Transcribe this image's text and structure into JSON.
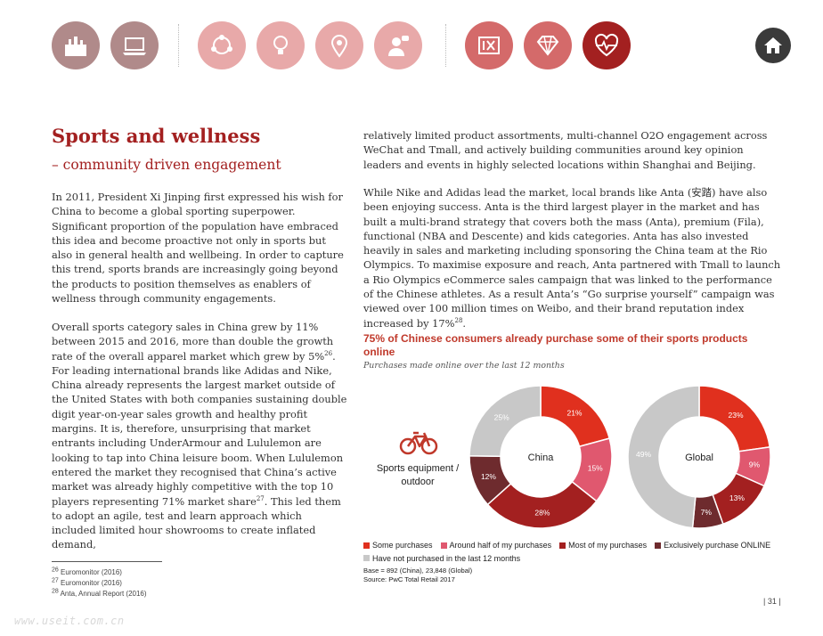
{
  "nav": {
    "icons": [
      {
        "name": "city-skyline-icon",
        "color": "#b08a8a"
      },
      {
        "name": "laptop-shopping-icon",
        "color": "#b08a8a"
      },
      {
        "name": "social-media-icon",
        "color": "#e8a9a9"
      },
      {
        "name": "lightbulb-icon",
        "color": "#e8a9a9"
      },
      {
        "name": "location-pin-icon",
        "color": "#e8a9a9"
      },
      {
        "name": "person-talking-icon",
        "color": "#e8a9a9"
      },
      {
        "name": "food-dining-icon",
        "color": "#d46a6a"
      },
      {
        "name": "diamond-icon",
        "color": "#d46a6a"
      },
      {
        "name": "heartbeat-icon",
        "color": "#a32020"
      }
    ],
    "home_icon": "home-icon"
  },
  "header": {
    "title": "Sports and wellness",
    "subtitle": "– community driven engagement"
  },
  "left_column": {
    "para1": "In 2011, President Xi Jinping first expressed his wish for China to become a global sporting superpower. Significant proportion of the population have embraced this idea and become proactive not only in sports but also in general health and wellbeing. In order to capture this trend, sports brands are increasingly going beyond the products to position themselves as enablers of wellness through community engagements.",
    "para2_a": "Overall sports category sales in China grew by 11% between 2015 and 2016, more than double the growth rate of the overall apparel market which grew by 5%",
    "para2_ref1": "26",
    "para2_b": ". For leading international brands like Adidas and Nike, China already represents the largest market outside of the United States with both companies sustaining double digit year-on-year sales growth and healthy profit margins. It is, therefore, unsurprising that market entrants including UnderArmour and Lululemon are looking to tap into China leisure boom. When Lululemon entered the market they recognised that China’s active market was already highly competitive with the top 10 players representing 71% market share",
    "para2_ref2": "27",
    "para2_c": ". This led them to adopt an agile, test and learn approach which included limited hour showrooms to create inflated demand,"
  },
  "right_column": {
    "para1": "relatively limited product assortments, multi-channel O2O engagement across WeChat and Tmall, and actively building communities around key opinion leaders and events in highly selected locations within Shanghai and Beijing.",
    "para2_a": "While Nike and Adidas lead the market, local brands like Anta (安踏) have also been enjoying success. Anta is the third largest player in the market and has built a multi-brand strategy that covers both the mass (Anta), premium (Fila), functional (NBA and Descente) and kids categories. Anta has also invested heavily in sales and marketing including sponsoring the China team at the Rio Olympics. To maximise exposure and reach, Anta partnered with Tmall to launch a Rio Olympics eCommerce sales campaign that was linked to the performance of the Chinese athletes. As a result Anta’s “Go surprise yourself” campaign was viewed over 100 million times on Weibo, and their brand reputation index increased by 17%",
    "para2_ref": "28",
    "para2_b": "."
  },
  "figure": {
    "title": "75% of Chinese consumers already purchase some of their sports products online",
    "subtitle": "Purchases made online over the last 12 months",
    "category_icon": "bicycle-icon",
    "category_label": "Sports equipment / outdoor",
    "base_note": "Base = 892 (China), 23,848 (Global)",
    "source_note": "Source: PwC Total Retail 2017"
  },
  "chart_data": {
    "type": "pie",
    "style": "donut",
    "series_names": [
      "Some purchases",
      "Around half of my purchases",
      "Most of my purchases",
      "Exclusively purchase ONLINE",
      "Have not purchased in the last 12 months"
    ],
    "colors": [
      "#e0301e",
      "#e0586f",
      "#a32020",
      "#6e2b2e",
      "#c8c8c8"
    ],
    "charts": [
      {
        "label": "China",
        "values": [
          21,
          15,
          28,
          12,
          25
        ],
        "value_labels": [
          "21%",
          "15%",
          "28%",
          "12%",
          "25%"
        ]
      },
      {
        "label": "Global",
        "values": [
          23,
          9,
          13,
          7,
          49
        ],
        "value_labels": [
          "23%",
          "9%",
          "13%",
          "7%",
          "49%"
        ]
      }
    ],
    "legend_position": "bottom"
  },
  "footnotes": [
    {
      "num": "26",
      "text": "Euromonitor (2016)"
    },
    {
      "num": "27",
      "text": "Euromonitor (2016)"
    },
    {
      "num": "28",
      "text": "Anta, Annual Report (2016)"
    }
  ],
  "page_number": "| 31 |",
  "watermark": "www.useit.com.cn"
}
